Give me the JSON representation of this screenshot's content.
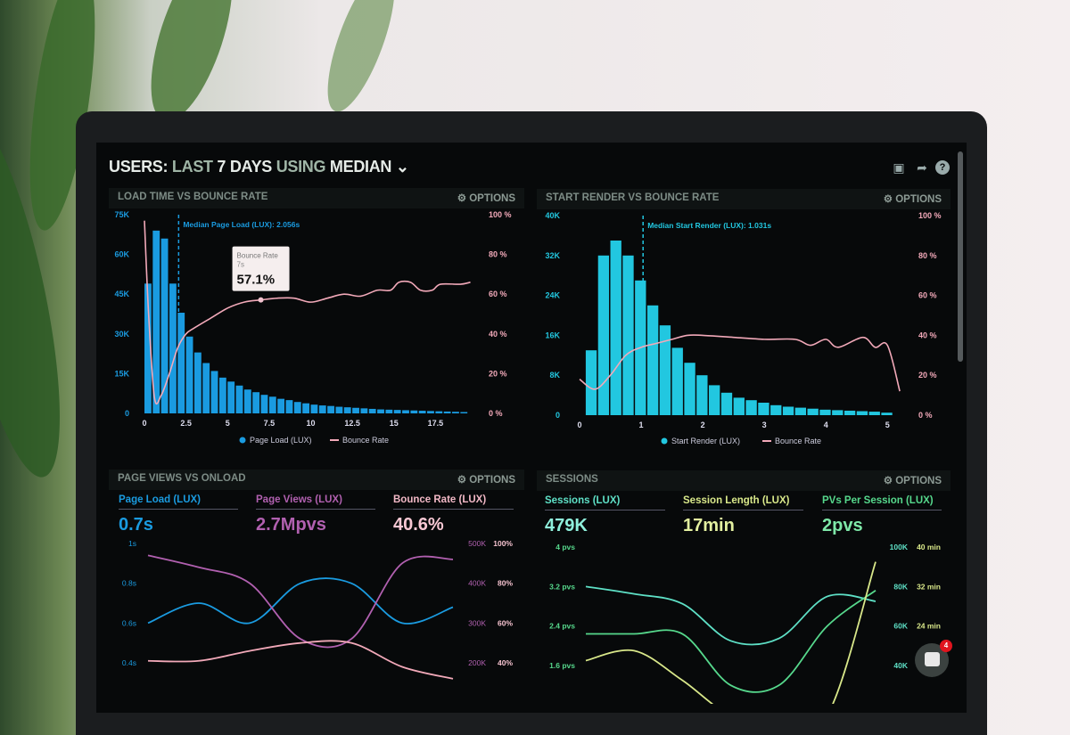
{
  "header": {
    "title_parts": [
      "USERS:",
      "LAST",
      "7 DAYS",
      "USING",
      "MEDIAN"
    ],
    "icons": [
      "monitor-icon",
      "share-icon",
      "help-icon"
    ]
  },
  "options_label": "OPTIONS",
  "colors": {
    "blue": "#1a9be0",
    "cyan": "#22c7e0",
    "pink": "#f2a9b9",
    "purple": "#b160b0",
    "teal": "#5ee0c6",
    "green": "#56d88c",
    "yellow": "#d9e88a"
  },
  "panels": [
    {
      "title": "LOAD TIME VS BOUNCE RATE"
    },
    {
      "title": "START RENDER VS BOUNCE RATE"
    },
    {
      "title": "PAGE VIEWS VS ONLOAD",
      "kpis": [
        {
          "label": "Page Load (LUX)",
          "value": "0.7s"
        },
        {
          "label": "Page Views (LUX)",
          "value": "2.7Mpvs"
        },
        {
          "label": "Bounce Rate (LUX)",
          "value": "40.6%"
        }
      ]
    },
    {
      "title": "SESSIONS",
      "kpis": [
        {
          "label": "Sessions (LUX)",
          "value": "479K"
        },
        {
          "label": "Session Length (LUX)",
          "value": "17min"
        },
        {
          "label": "PVs Per Session (LUX)",
          "value": "2pvs"
        }
      ]
    }
  ],
  "chat": {
    "badge": "4"
  },
  "chart_data": [
    {
      "type": "bar+line",
      "title": "LOAD TIME VS BOUNCE RATE",
      "annotation": "Median Page Load (LUX): 2.056s",
      "median": 2.056,
      "tooltip": {
        "title": "Bounce Rate",
        "x": "7s",
        "value": "57.1%"
      },
      "xticks": [
        "0",
        "2.5",
        "5",
        "7.5",
        "10",
        "12.5",
        "15",
        "17.5"
      ],
      "xlim": [
        0,
        20
      ],
      "yticks_left": [
        "0",
        "15K",
        "30K",
        "45K",
        "60K",
        "75K"
      ],
      "ylim_left": [
        0,
        75000
      ],
      "yticks_right": [
        "0 %",
        "20 %",
        "40 %",
        "60 %",
        "80 %",
        "100 %"
      ],
      "ylim_right": [
        0,
        100
      ],
      "legend": [
        "Page Load (LUX)",
        "Bounce Rate"
      ],
      "bar_width": 0.5,
      "bars": [
        49,
        69,
        66,
        49,
        38,
        29,
        23,
        19,
        16,
        13.5,
        12,
        10.5,
        9,
        8,
        7,
        6.3,
        5.5,
        5,
        4.3,
        3.8,
        3.3,
        3,
        2.8,
        2.5,
        2.3,
        2.1,
        1.9,
        1.7,
        1.5,
        1.4,
        1.3,
        1.2,
        1.1,
        1,
        0.9,
        0.8,
        0.7,
        0.6,
        0.5
      ],
      "bars_unit": "K",
      "line": [
        [
          0,
          97
        ],
        [
          0.25,
          50
        ],
        [
          0.6,
          8
        ],
        [
          1,
          9
        ],
        [
          1.5,
          20
        ],
        [
          2,
          33
        ],
        [
          2.5,
          40
        ],
        [
          3,
          43
        ],
        [
          4,
          48
        ],
        [
          5,
          53
        ],
        [
          6,
          56
        ],
        [
          7,
          57.1
        ],
        [
          8,
          58
        ],
        [
          9,
          58
        ],
        [
          10,
          56
        ],
        [
          11,
          58
        ],
        [
          12,
          60
        ],
        [
          13,
          59
        ],
        [
          14,
          62
        ],
        [
          14.8,
          62
        ],
        [
          15.3,
          66
        ],
        [
          16,
          66
        ],
        [
          16.6,
          62
        ],
        [
          17.3,
          62
        ],
        [
          17.8,
          65
        ],
        [
          19,
          65
        ],
        [
          19.6,
          66
        ]
      ]
    },
    {
      "type": "bar+line",
      "title": "START RENDER VS BOUNCE RATE",
      "annotation": "Median Start Render (LUX): 1.031s",
      "median": 1.031,
      "xticks": [
        "0",
        "1",
        "2",
        "3",
        "4",
        "5"
      ],
      "xlim": [
        0,
        5.3
      ],
      "yticks_left": [
        "0",
        "8K",
        "16K",
        "24K",
        "32K",
        "40K"
      ],
      "ylim_left": [
        0,
        40000
      ],
      "yticks_right": [
        "0 %",
        "20 %",
        "40 %",
        "60 %",
        "80 %",
        "100 %"
      ],
      "ylim_right": [
        0,
        100
      ],
      "legend": [
        "Start Render (LUX)",
        "Bounce Rate"
      ],
      "bar_width": 0.2,
      "bars": [
        13,
        32,
        35,
        32,
        27,
        22,
        18,
        13.5,
        10.5,
        8,
        6,
        4.5,
        3.5,
        3,
        2.5,
        2,
        1.7,
        1.5,
        1.3,
        1.1,
        1,
        0.9,
        0.8,
        0.7,
        0.5
      ],
      "bars_unit": "K",
      "line": [
        [
          0,
          18
        ],
        [
          0.25,
          13
        ],
        [
          0.5,
          20
        ],
        [
          0.75,
          30
        ],
        [
          1,
          34
        ],
        [
          1.25,
          36
        ],
        [
          1.5,
          38
        ],
        [
          1.75,
          40
        ],
        [
          2,
          40
        ],
        [
          2.5,
          39
        ],
        [
          3,
          38
        ],
        [
          3.5,
          38
        ],
        [
          3.75,
          35
        ],
        [
          4,
          38
        ],
        [
          4.2,
          34
        ],
        [
          4.6,
          39
        ],
        [
          4.8,
          34
        ],
        [
          5,
          35
        ],
        [
          5.2,
          12
        ]
      ]
    },
    {
      "type": "line",
      "title": "PAGE VIEWS VS ONLOAD",
      "yticks_left": [
        "0.4s",
        "0.6s",
        "0.8s",
        "1s"
      ],
      "ylim_left": [
        0.4,
        1
      ],
      "yticks_right_a": [
        "200K",
        "300K",
        "400K",
        "500K"
      ],
      "ylim_right_a": [
        200000,
        500000
      ],
      "yticks_right_b": [
        "40%",
        "60%",
        "80%",
        "100%"
      ],
      "ylim_right_b": [
        40,
        100
      ],
      "series": [
        {
          "name": "Page Load (LUX)",
          "axis": "left",
          "values": [
            0.6,
            0.7,
            0.6,
            0.8,
            0.8,
            0.6,
            0.68
          ]
        },
        {
          "name": "Page Views (LUX)",
          "axis": "right_a",
          "values": [
            470,
            440,
            400,
            260,
            260,
            450,
            460
          ]
        },
        {
          "name": "Bounce Rate (LUX)",
          "axis": "right_b",
          "values": [
            41,
            41,
            46,
            50,
            50,
            38,
            32
          ]
        }
      ]
    },
    {
      "type": "line",
      "title": "SESSIONS",
      "yticks_left": [
        "1.6 pvs",
        "2.4 pvs",
        "3.2 pvs",
        "4 pvs"
      ],
      "ylim_left": [
        1.6,
        4
      ],
      "yticks_right_a": [
        "40K",
        "60K",
        "80K",
        "100K"
      ],
      "ylim_right_a": [
        40000,
        100000
      ],
      "yticks_right_b": [
        "24 min",
        "32 min",
        "40 min"
      ],
      "ylim_right_b": [
        16,
        40
      ],
      "series": [
        {
          "name": "PVs Per Session (LUX)",
          "axis": "left",
          "values": [
            3.2,
            3.05,
            2.85,
            2.1,
            2.15,
            3.0,
            2.9
          ]
        },
        {
          "name": "Sessions (LUX)",
          "axis": "right_a",
          "values": [
            56,
            56,
            56,
            30,
            30,
            60,
            78
          ]
        },
        {
          "name": "Session Length (LUX)",
          "axis": "right_b",
          "values": [
            17,
            19,
            13,
            6,
            6,
            6,
            37
          ]
        }
      ]
    }
  ]
}
